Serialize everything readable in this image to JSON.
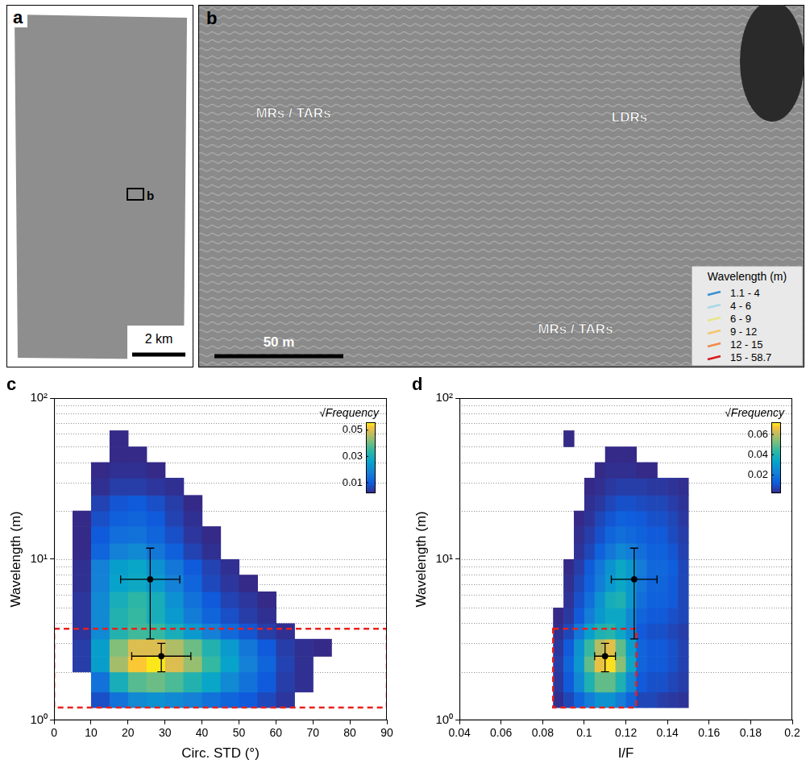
{
  "panels": {
    "a": {
      "letter": "a",
      "scale_bar": "2 km",
      "inset_label": "b"
    },
    "b": {
      "letter": "b",
      "labels": [
        "MRs / TARs",
        "LDRs",
        "MRs / TARs"
      ],
      "scale_bar": "50 m",
      "legend": {
        "title": "Wavelength (m)",
        "entries": [
          {
            "label": "1.1 - 4",
            "color": "#3a8fd0"
          },
          {
            "label": "4 - 6",
            "color": "#a6d9e8"
          },
          {
            "label": "6 - 9",
            "color": "#e6e68a"
          },
          {
            "label": "9 - 12",
            "color": "#f5c66a"
          },
          {
            "label": "12 - 15",
            "color": "#f08a4b"
          },
          {
            "label": "15 - 58.7",
            "color": "#d7191c"
          }
        ]
      }
    }
  },
  "chart_data": [
    {
      "letter": "c",
      "type": "heatmap",
      "xlabel": "Circ. STD (°)",
      "ylabel": "Wavelength (m)",
      "xlim": [
        0,
        90
      ],
      "xticks": [
        0,
        10,
        20,
        30,
        40,
        50,
        60,
        70,
        80,
        90
      ],
      "ylim": [
        1,
        100
      ],
      "yticks": [
        {
          "value": 1,
          "label": "10⁰"
        },
        {
          "value": 10,
          "label": "10¹"
        },
        {
          "value": 100,
          "label": "10²"
        }
      ],
      "log": "y",
      "grid": true,
      "y_gridlines": [
        2,
        3,
        4,
        5,
        6,
        7,
        8,
        9,
        20,
        30,
        40,
        50,
        60,
        70,
        80,
        90
      ],
      "x_bins": [
        0,
        5,
        10,
        15,
        20,
        25,
        30,
        35,
        40,
        45,
        50,
        55,
        60,
        65,
        70,
        75,
        80,
        85,
        90
      ],
      "y_bins": [
        1.2,
        1.5,
        2,
        2.5,
        3.2,
        4,
        5,
        6.3,
        8,
        10,
        12.6,
        16,
        20,
        25,
        32,
        40,
        50,
        63
      ],
      "cells": [
        [
          null,
          null,
          0.008,
          0.015,
          0.02,
          0.022,
          0.02,
          0.018,
          0.015,
          0.012,
          0.01,
          0.007,
          0.004,
          null,
          null,
          null,
          null,
          null
        ],
        [
          null,
          null,
          0.015,
          0.03,
          0.038,
          0.04,
          0.037,
          0.032,
          0.027,
          0.02,
          0.015,
          0.01,
          0.005,
          0.003,
          null,
          null,
          null,
          null
        ],
        [
          null,
          0.005,
          0.025,
          0.045,
          0.053,
          0.055,
          0.05,
          0.044,
          0.035,
          0.026,
          0.018,
          0.012,
          0.006,
          0.003,
          null,
          null,
          null,
          null
        ],
        [
          null,
          0.005,
          0.025,
          0.042,
          0.05,
          0.05,
          0.046,
          0.04,
          0.032,
          0.024,
          0.016,
          0.01,
          0.005,
          0.003,
          0.002,
          null,
          null,
          null
        ],
        [
          null,
          0.004,
          0.02,
          0.032,
          0.036,
          0.035,
          0.03,
          0.024,
          0.018,
          0.013,
          0.009,
          0.005,
          0.003,
          null,
          null,
          null,
          null,
          null
        ],
        [
          null,
          0.004,
          0.02,
          0.032,
          0.035,
          0.03,
          0.024,
          0.017,
          0.012,
          0.008,
          0.005,
          0.003,
          null,
          null,
          null,
          null,
          null,
          null
        ],
        [
          null,
          0.004,
          0.02,
          0.03,
          0.034,
          0.03,
          0.022,
          0.015,
          0.01,
          0.006,
          0.004,
          0.002,
          null,
          null,
          null,
          null,
          null,
          null
        ],
        [
          null,
          0.003,
          0.018,
          0.026,
          0.028,
          0.024,
          0.018,
          0.012,
          0.007,
          0.004,
          0.002,
          null,
          null,
          null,
          null,
          null,
          null,
          null
        ],
        [
          null,
          0.003,
          0.018,
          0.025,
          0.027,
          0.022,
          0.016,
          0.01,
          0.006,
          0.003,
          null,
          null,
          null,
          null,
          null,
          null,
          null,
          null
        ],
        [
          null,
          0.002,
          0.012,
          0.018,
          0.02,
          0.016,
          0.011,
          0.006,
          0.003,
          null,
          null,
          null,
          null,
          null,
          null,
          null,
          null,
          null
        ],
        [
          null,
          0.002,
          0.01,
          0.014,
          0.015,
          0.012,
          0.008,
          0.004,
          0.002,
          null,
          null,
          null,
          null,
          null,
          null,
          null,
          null,
          null
        ],
        [
          null,
          0.002,
          0.008,
          0.011,
          0.012,
          0.01,
          0.006,
          0.003,
          null,
          null,
          null,
          null,
          null,
          null,
          null,
          null,
          null,
          null
        ],
        [
          null,
          null,
          0.006,
          0.009,
          0.01,
          0.008,
          0.005,
          0.002,
          null,
          null,
          null,
          null,
          null,
          null,
          null,
          null,
          null,
          null
        ],
        [
          null,
          null,
          0.003,
          0.005,
          0.005,
          0.004,
          0.003,
          null,
          null,
          null,
          null,
          null,
          null,
          null,
          null,
          null,
          null,
          null
        ],
        [
          null,
          null,
          0.002,
          0.003,
          0.003,
          0.002,
          null,
          null,
          null,
          null,
          null,
          null,
          null,
          null,
          null,
          null,
          null,
          null
        ],
        [
          null,
          null,
          null,
          0.002,
          0.002,
          null,
          null,
          null,
          null,
          null,
          null,
          null,
          null,
          null,
          null,
          null,
          null,
          null
        ],
        [
          null,
          null,
          null,
          0.002,
          null,
          null,
          null,
          null,
          null,
          null,
          null,
          null,
          null,
          null,
          null,
          null,
          null,
          null
        ]
      ],
      "colorbar": {
        "label": "√Frequency",
        "lim": [
          0.002,
          0.056
        ],
        "ticks": [
          0.01,
          0.03,
          0.05
        ]
      },
      "markers": [
        {
          "x": 26,
          "y": 7.5,
          "xerr": [
            18,
            34
          ],
          "yerr": [
            3.2,
            11.7
          ]
        },
        {
          "x": 29,
          "y": 2.5,
          "xerr": [
            21,
            37
          ],
          "yerr": [
            2,
            3
          ]
        }
      ],
      "highlight": {
        "x": [
          0,
          90
        ],
        "y": [
          1.2,
          3.7
        ],
        "color": "#e8201c"
      }
    },
    {
      "letter": "d",
      "type": "heatmap",
      "xlabel": "I/F",
      "ylabel": "Wavelength (m)",
      "xlim": [
        0.04,
        0.2
      ],
      "xticks": [
        0.04,
        0.06,
        0.08,
        0.1,
        0.12,
        0.14,
        0.16,
        0.18,
        0.2
      ],
      "ylim": [
        1,
        100
      ],
      "yticks": [
        {
          "value": 1,
          "label": "10⁰"
        },
        {
          "value": 10,
          "label": "10¹"
        },
        {
          "value": 100,
          "label": "10²"
        }
      ],
      "log": "y",
      "grid": true,
      "y_gridlines": [
        2,
        3,
        4,
        5,
        6,
        7,
        8,
        9,
        20,
        30,
        40,
        50,
        60,
        70,
        80,
        90
      ],
      "x_bins": [
        0.085,
        0.09,
        0.095,
        0.1,
        0.105,
        0.11,
        0.115,
        0.12,
        0.125,
        0.13,
        0.135,
        0.14,
        0.145,
        0.15
      ],
      "y_bins": [
        1.2,
        1.5,
        2,
        2.5,
        3.2,
        4,
        5,
        6.3,
        8,
        10,
        12.6,
        16,
        20,
        25,
        32,
        40,
        50,
        63
      ],
      "cells": [
        [
          0.003,
          0.008,
          0.015,
          0.022,
          0.028,
          0.028,
          0.022,
          0.015,
          0.008,
          0.008,
          0.006,
          0.005,
          0.004
        ],
        [
          0.005,
          0.012,
          0.025,
          0.04,
          0.05,
          0.05,
          0.04,
          0.025,
          0.012,
          0.01,
          0.01,
          0.008,
          0.006
        ],
        [
          0.006,
          0.015,
          0.03,
          0.05,
          0.066,
          0.07,
          0.055,
          0.035,
          0.015,
          0.012,
          0.012,
          0.01,
          0.007
        ],
        [
          0.005,
          0.012,
          0.028,
          0.045,
          0.06,
          0.065,
          0.05,
          0.032,
          0.015,
          0.012,
          0.012,
          0.01,
          0.007
        ],
        [
          0.003,
          0.008,
          0.02,
          0.032,
          0.04,
          0.042,
          0.035,
          0.025,
          0.012,
          0.01,
          0.01,
          0.008,
          0.006
        ],
        [
          0.002,
          0.005,
          0.012,
          0.022,
          0.03,
          0.035,
          0.035,
          0.025,
          0.015,
          0.012,
          0.012,
          0.01,
          0.008
        ],
        [
          null,
          0.004,
          0.01,
          0.018,
          0.028,
          0.038,
          0.04,
          0.03,
          0.018,
          0.014,
          0.014,
          0.012,
          0.008
        ],
        [
          null,
          0.003,
          0.008,
          0.014,
          0.022,
          0.03,
          0.035,
          0.03,
          0.02,
          0.015,
          0.015,
          0.012,
          0.008
        ],
        [
          null,
          0.002,
          0.006,
          0.012,
          0.02,
          0.028,
          0.035,
          0.03,
          0.022,
          0.016,
          0.016,
          0.013,
          0.008
        ],
        [
          null,
          null,
          0.004,
          0.008,
          0.014,
          0.02,
          0.025,
          0.022,
          0.018,
          0.014,
          0.014,
          0.011,
          0.007
        ],
        [
          null,
          null,
          0.003,
          0.006,
          0.01,
          0.015,
          0.018,
          0.016,
          0.014,
          0.012,
          0.012,
          0.009,
          0.006
        ],
        [
          null,
          null,
          0.002,
          0.004,
          0.008,
          0.011,
          0.014,
          0.013,
          0.012,
          0.01,
          0.01,
          0.008,
          0.005
        ],
        [
          null,
          null,
          null,
          0.003,
          0.005,
          0.008,
          0.01,
          0.01,
          0.009,
          0.008,
          0.008,
          0.006,
          0.004
        ],
        [
          null,
          null,
          null,
          0.002,
          0.003,
          0.005,
          0.006,
          0.006,
          0.006,
          0.005,
          0.005,
          0.004,
          0.003
        ],
        [
          null,
          null,
          null,
          null,
          0.002,
          0.003,
          0.003,
          0.003,
          0.002,
          0.002,
          null,
          null,
          null
        ],
        [
          null,
          null,
          null,
          null,
          null,
          0.002,
          0.002,
          0.002,
          null,
          null,
          null,
          null,
          null
        ],
        [
          null,
          0.002,
          null,
          null,
          null,
          null,
          null,
          null,
          null,
          null,
          null,
          null,
          null
        ]
      ],
      "colorbar": {
        "label": "√Frequency",
        "lim": [
          0.002,
          0.072
        ],
        "ticks": [
          0.02,
          0.04,
          0.06
        ]
      },
      "markers": [
        {
          "x": 0.124,
          "y": 7.5,
          "xerr": [
            0.113,
            0.135
          ],
          "yerr": [
            3.2,
            11.7
          ]
        },
        {
          "x": 0.11,
          "y": 2.5,
          "xerr": [
            0.105,
            0.115
          ],
          "yerr": [
            2,
            3
          ]
        }
      ],
      "highlight": {
        "x": [
          0.085,
          0.125
        ],
        "y": [
          1.2,
          3.7
        ],
        "color": "#e8201c"
      }
    }
  ]
}
